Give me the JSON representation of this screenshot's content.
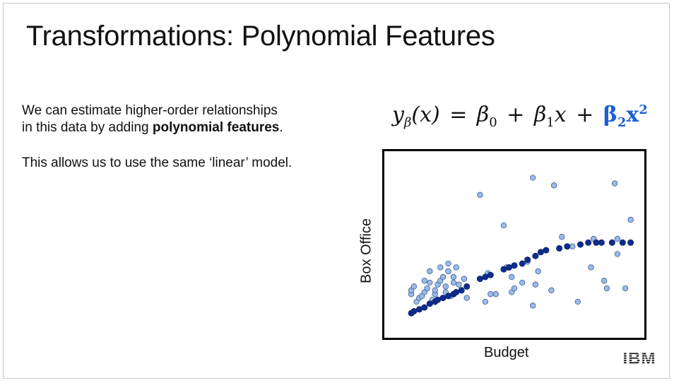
{
  "slide": {
    "title": "Transformations: Polynomial Features",
    "paragraph1_line1": "We can estimate higher-order relationships",
    "paragraph1_line2a": "in this data by adding ",
    "paragraph1_bold": "polynomial features",
    "paragraph1_line2b": ".",
    "paragraph2": "This allows us to use the same ‘linear’ model.",
    "logo_text": "IBM"
  },
  "formula": {
    "lhs": "y",
    "lhs_sub": "β",
    "lhs_arg": "(x)",
    "eq": "=",
    "b0": "β",
    "b0_sub": "0",
    "plus1": "+",
    "b1": "β",
    "b1_sub": "1",
    "x1": "x",
    "plus2": "+",
    "b2": "β",
    "b2_sub": "2",
    "x2": "x",
    "x2_sup": "2",
    "highlight_color": "#1f5fd1"
  },
  "colors": {
    "data_point": "#9bbbe6",
    "data_point_stroke": "#2b4f8c",
    "model_point": "#0d2d8c"
  },
  "chart_data": {
    "type": "scatter",
    "xlabel": "Budget",
    "ylabel": "Box Office",
    "grid": false,
    "ticks": false,
    "xlim": [
      0,
      100
    ],
    "ylim": [
      0,
      100
    ],
    "series": [
      {
        "role": "observed",
        "points": [
          [
            11,
            24
          ],
          [
            11,
            26
          ],
          [
            12,
            28
          ],
          [
            13,
            20
          ],
          [
            14,
            22
          ],
          [
            15,
            23
          ],
          [
            16,
            25
          ],
          [
            16,
            31
          ],
          [
            17,
            27
          ],
          [
            18,
            30
          ],
          [
            18,
            36
          ],
          [
            19,
            21
          ],
          [
            20,
            24
          ],
          [
            20,
            26
          ],
          [
            21,
            29
          ],
          [
            22,
            31
          ],
          [
            22,
            38
          ],
          [
            23,
            33
          ],
          [
            24,
            25
          ],
          [
            24,
            28
          ],
          [
            25,
            36
          ],
          [
            25,
            40
          ],
          [
            26,
            23
          ],
          [
            27,
            30
          ],
          [
            27,
            33
          ],
          [
            28,
            38
          ],
          [
            29,
            29
          ],
          [
            30,
            26
          ],
          [
            31,
            32
          ],
          [
            32,
            22
          ],
          [
            37,
            76
          ],
          [
            39,
            20
          ],
          [
            40,
            35
          ],
          [
            41,
            24
          ],
          [
            43,
            24
          ],
          [
            46,
            60
          ],
          [
            47,
            38
          ],
          [
            49,
            25
          ],
          [
            49,
            33
          ],
          [
            50,
            27
          ],
          [
            53,
            30
          ],
          [
            55,
            41
          ],
          [
            57,
            85
          ],
          [
            57,
            18
          ],
          [
            58,
            29
          ],
          [
            59,
            36
          ],
          [
            64,
            26
          ],
          [
            65,
            81
          ],
          [
            68,
            54
          ],
          [
            72,
            49
          ],
          [
            74,
            20
          ],
          [
            79,
            38
          ],
          [
            80,
            53
          ],
          [
            84,
            31
          ],
          [
            85,
            27
          ],
          [
            88,
            82
          ],
          [
            89,
            45
          ],
          [
            89,
            53
          ],
          [
            92,
            27
          ],
          [
            94,
            63
          ]
        ]
      },
      {
        "role": "fitted",
        "points": [
          [
            11,
            14
          ],
          [
            12,
            15
          ],
          [
            14,
            16
          ],
          [
            16,
            17
          ],
          [
            18,
            19
          ],
          [
            20,
            20
          ],
          [
            21,
            21
          ],
          [
            23,
            22
          ],
          [
            25,
            23
          ],
          [
            27,
            24
          ],
          [
            28,
            25
          ],
          [
            30,
            26
          ],
          [
            32,
            28
          ],
          [
            37,
            32
          ],
          [
            39,
            33
          ],
          [
            41,
            34
          ],
          [
            46,
            37
          ],
          [
            48,
            38
          ],
          [
            50,
            39
          ],
          [
            53,
            40
          ],
          [
            55,
            42
          ],
          [
            58,
            44
          ],
          [
            60,
            46
          ],
          [
            62,
            47
          ],
          [
            67,
            48
          ],
          [
            70,
            49
          ],
          [
            75,
            50
          ],
          [
            78,
            51
          ],
          [
            81,
            51
          ],
          [
            83,
            51
          ],
          [
            87,
            51
          ],
          [
            91,
            51
          ],
          [
            94,
            51
          ]
        ]
      }
    ]
  }
}
